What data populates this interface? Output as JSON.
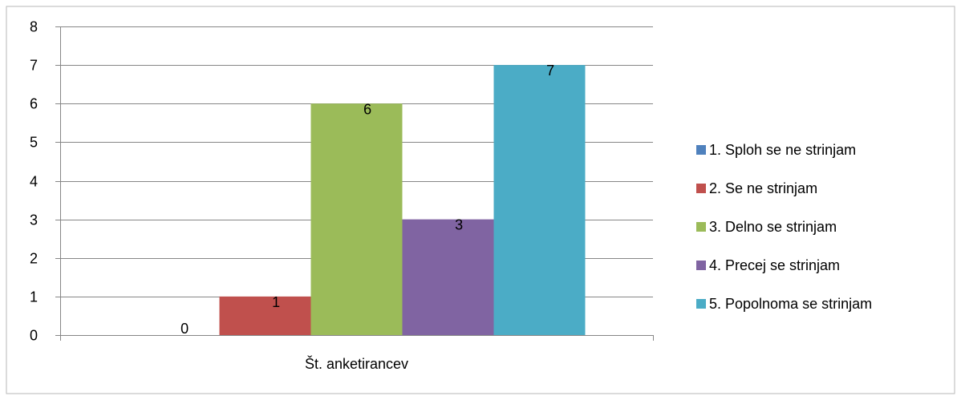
{
  "chart_data": {
    "type": "bar",
    "categories": [
      "Št. anketirancev"
    ],
    "series": [
      {
        "name": "1. Sploh se ne strinjam",
        "values": [
          0
        ],
        "color": "#4F81BD"
      },
      {
        "name": "2. Se ne strinjam",
        "values": [
          1
        ],
        "color": "#C0504D"
      },
      {
        "name": "3. Delno se strinjam",
        "values": [
          6
        ],
        "color": "#9BBB59"
      },
      {
        "name": "4. Precej se strinjam",
        "values": [
          3
        ],
        "color": "#8064A2"
      },
      {
        "name": "5. Popolnoma se strinjam",
        "values": [
          7
        ],
        "color": "#4BACC6"
      }
    ],
    "ylim": [
      0,
      8
    ],
    "yticks": [
      "0",
      "1",
      "2",
      "3",
      "4",
      "5",
      "6",
      "7",
      "8"
    ],
    "title": "",
    "xlabel": "",
    "ylabel": "",
    "grid": true,
    "legend": "right"
  }
}
